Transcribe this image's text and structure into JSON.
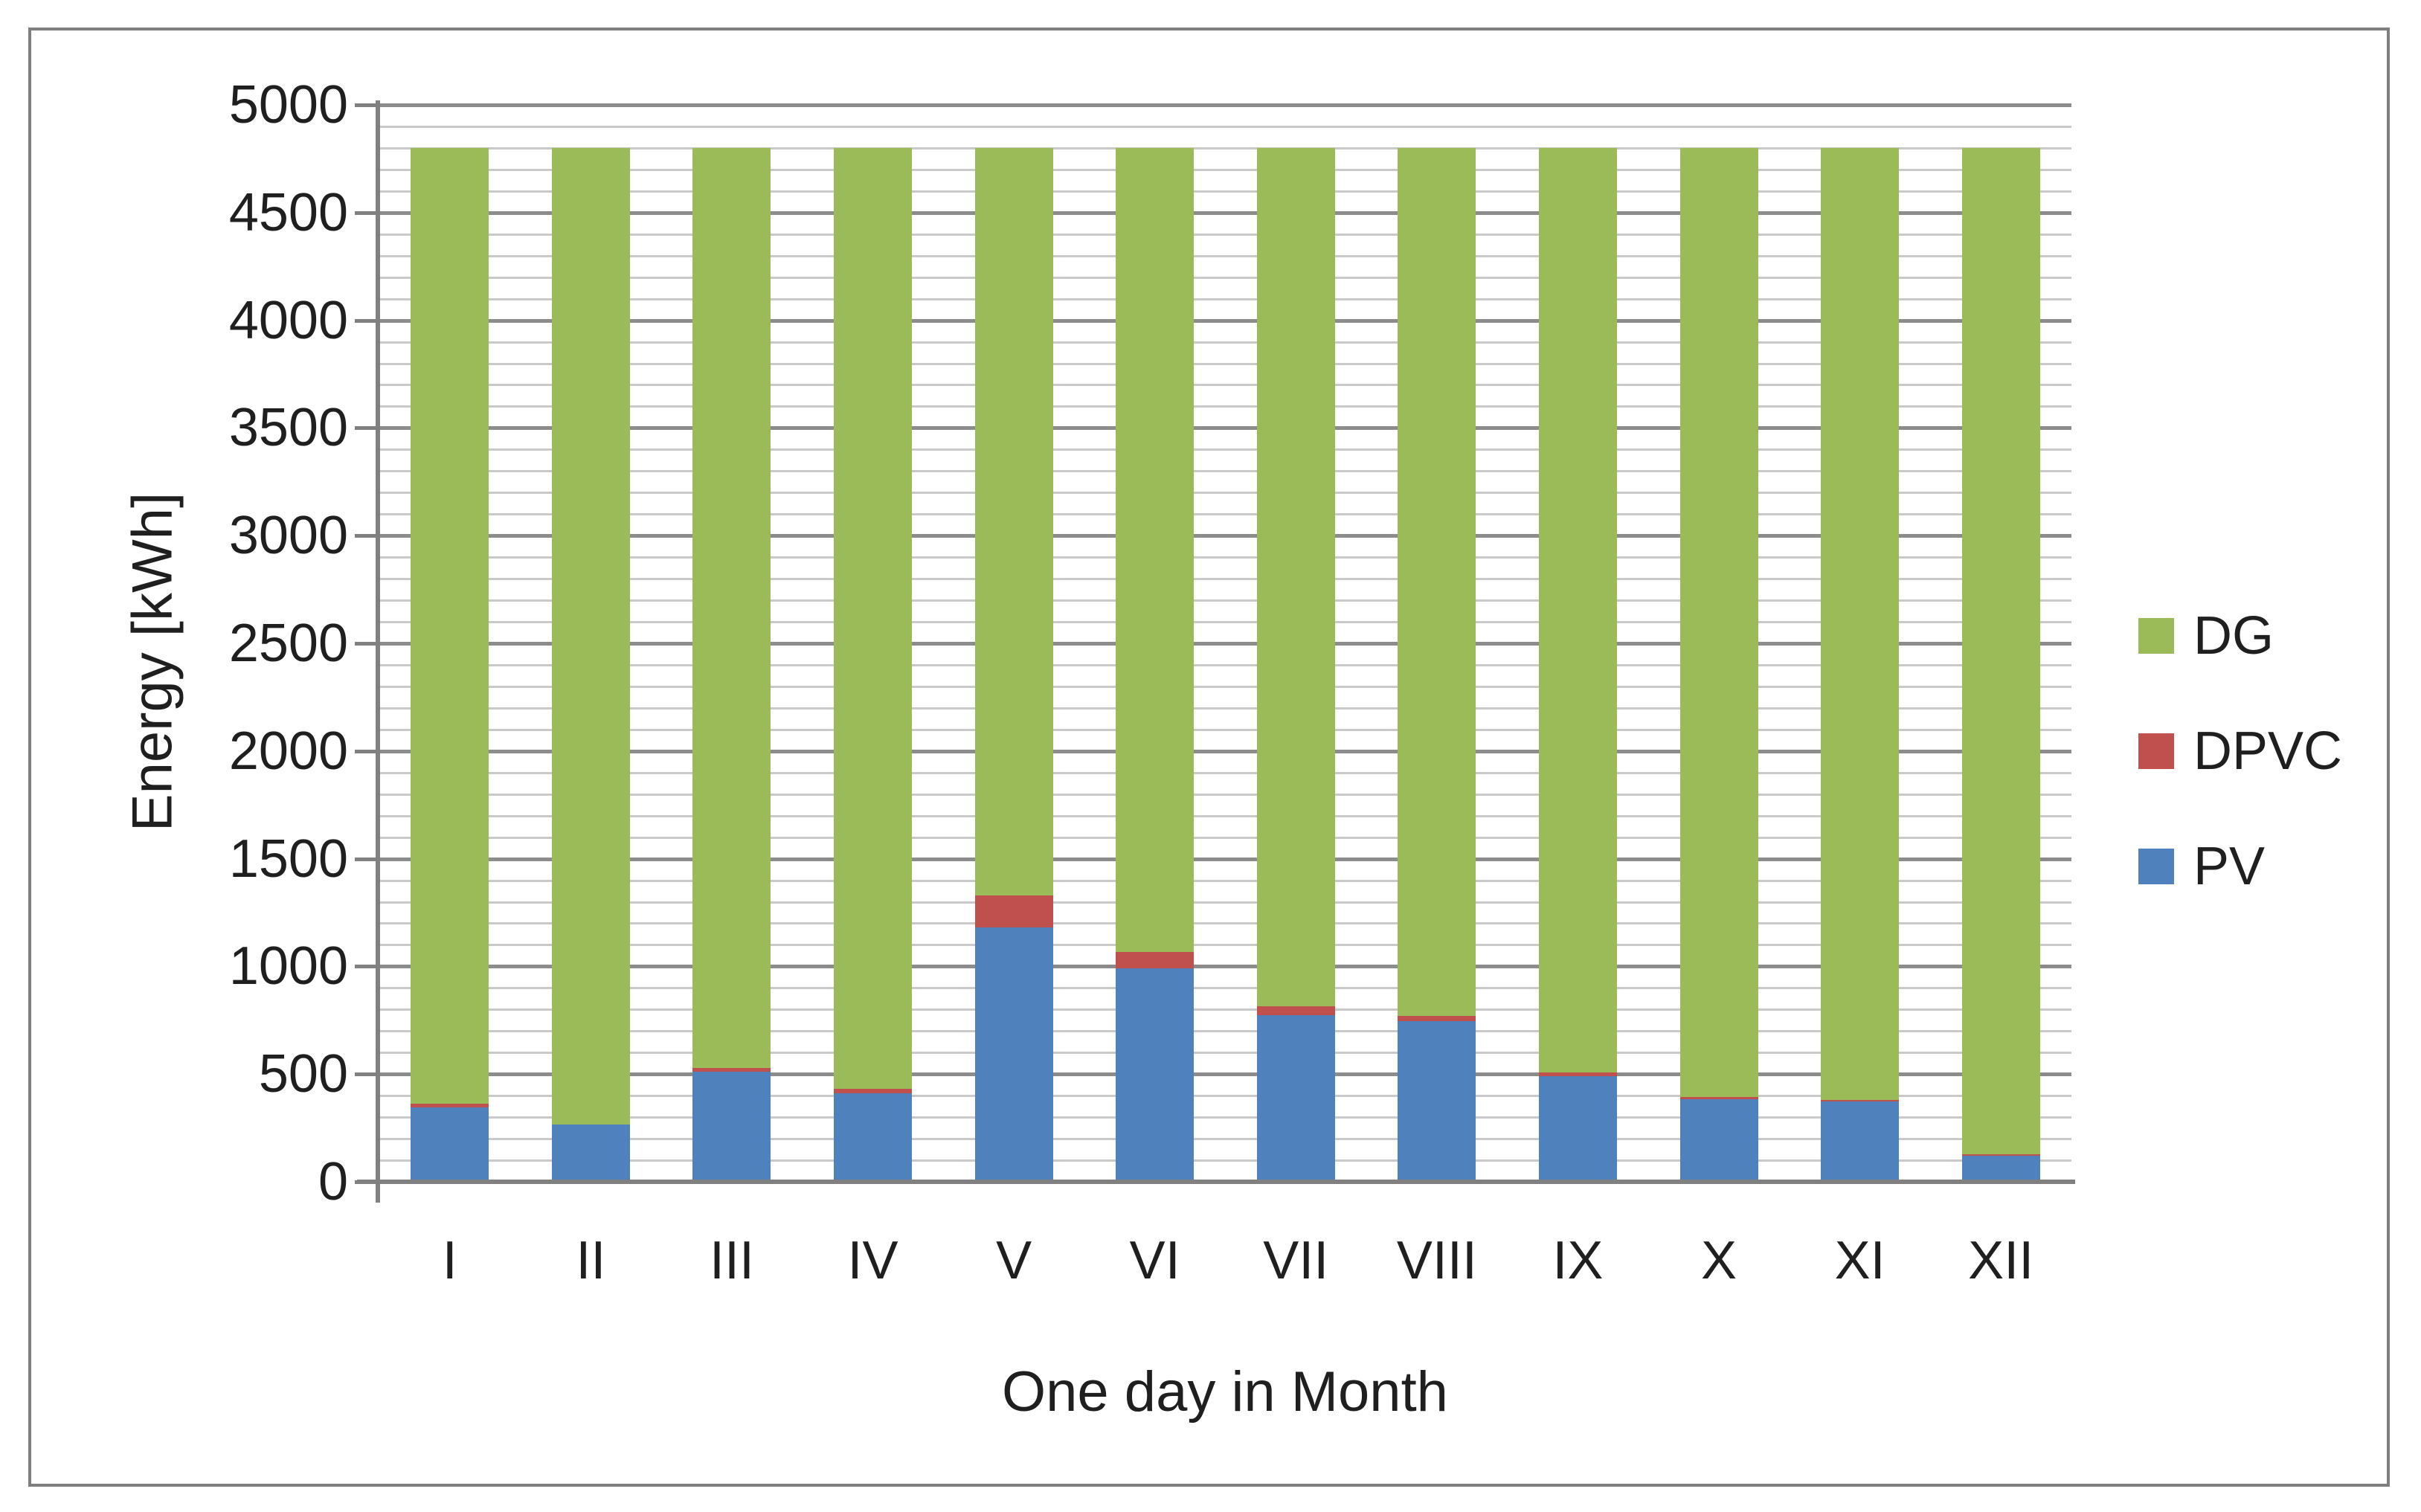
{
  "figure": {
    "y_axis_title": "Energy [kWh]",
    "x_axis_title": "One day in Month"
  },
  "colors": {
    "pv": "#4F81BD",
    "dpvc": "#C0504D",
    "dg": "#9BBB59",
    "axis": "#808080",
    "grid_major": "#8C8C8C",
    "grid_minor": "#C9C9C9",
    "frame": "#7F7F7F",
    "text": "#1F1F1F"
  },
  "legend": [
    {
      "label": "DG",
      "color_key": "dg"
    },
    {
      "label": "DPVC",
      "color_key": "dpvc"
    },
    {
      "label": "PV",
      "color_key": "pv"
    }
  ],
  "chart_data": {
    "type": "bar",
    "stacked": true,
    "title": "",
    "xlabel": "One day in Month",
    "ylabel": "Energy [kWh]",
    "categories": [
      "I",
      "II",
      "III",
      "IV",
      "V",
      "VI",
      "VII",
      "VIII",
      "IX",
      "X",
      "XI",
      "XII"
    ],
    "series": [
      {
        "name": "PV",
        "color_key": "pv",
        "values": [
          345,
          265,
          510,
          410,
          1180,
          990,
          775,
          745,
          490,
          385,
          372,
          120
        ]
      },
      {
        "name": "DPVC",
        "color_key": "dpvc",
        "values": [
          18,
          0,
          18,
          22,
          150,
          75,
          40,
          25,
          18,
          12,
          8,
          8
        ]
      },
      {
        "name": "DG",
        "color_key": "dg",
        "values": [
          4437,
          4535,
          4272,
          4368,
          3470,
          3735,
          3985,
          4030,
          4292,
          4403,
          4420,
          4672
        ]
      }
    ],
    "bar_total": 4800,
    "ylim": [
      0,
      5000
    ],
    "y_major_step": 500,
    "y_minor_step": 100,
    "y_ticks": [
      "0",
      "500",
      "1000",
      "1500",
      "2000",
      "2500",
      "3000",
      "3500",
      "4000",
      "4500",
      "5000"
    ],
    "grid": "horizontal major+minor",
    "legend_position": "right"
  }
}
